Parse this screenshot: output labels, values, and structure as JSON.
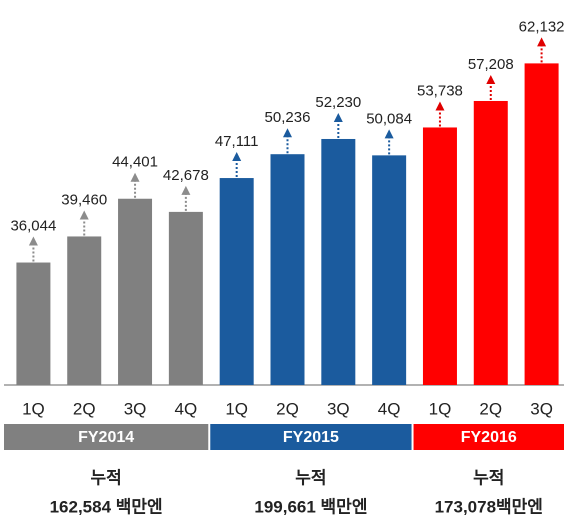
{
  "chart_data": {
    "type": "bar",
    "ylim": [
      20000,
      65000
    ],
    "series": [
      {
        "name": "FY2014",
        "color": "#808080",
        "arrow_color": "#8c8c8c",
        "categories": [
          "1Q",
          "2Q",
          "3Q",
          "4Q"
        ],
        "values": [
          36044,
          39460,
          44401,
          42678
        ],
        "value_labels": [
          "36,044",
          "39,460",
          "44,401",
          "42,678"
        ],
        "total_title": "누적",
        "total": "162,584 백만엔"
      },
      {
        "name": "FY2015",
        "color": "#1b5b9e",
        "arrow_color": "#1b5b9e",
        "categories": [
          "1Q",
          "2Q",
          "3Q",
          "4Q"
        ],
        "values": [
          47111,
          50236,
          52230,
          50084
        ],
        "value_labels": [
          "47,111",
          "50,236",
          "52,230",
          "50,084"
        ],
        "total_title": "누적",
        "total": "199,661 백만엔"
      },
      {
        "name": "FY2016",
        "color": "#ff0000",
        "arrow_color": "#e00000",
        "categories": [
          "1Q",
          "2Q",
          "3Q"
        ],
        "values": [
          53738,
          57208,
          62132
        ],
        "value_labels": [
          "53,738",
          "57,208",
          "62,132"
        ],
        "total_title": "누적",
        "total": "173,078백만엔"
      }
    ]
  }
}
